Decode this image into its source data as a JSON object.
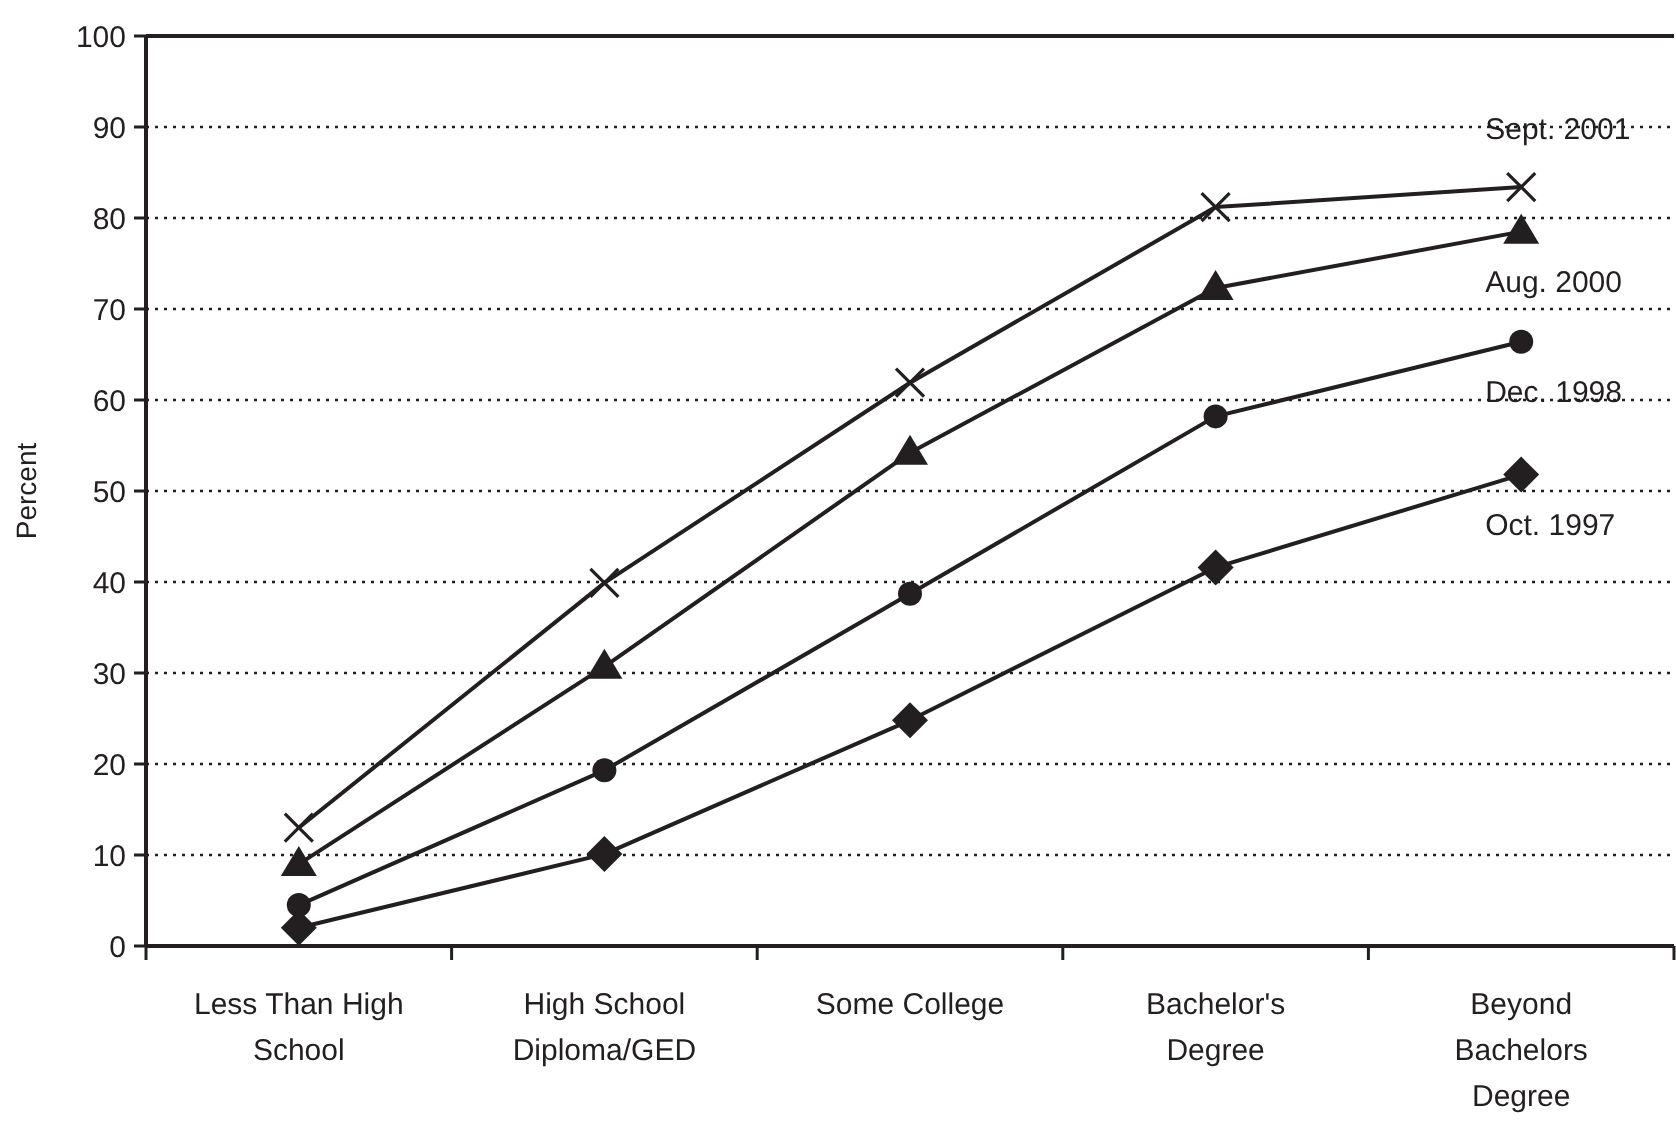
{
  "chart_data": {
    "type": "line",
    "ylabel": "Percent",
    "categories": [
      "Less Than High School",
      "High School Diploma/GED",
      "Some College",
      "Bachelor's Degree",
      "Beyond Bachelors Degree"
    ],
    "ylim": [
      0,
      100
    ],
    "yticks": [
      0,
      10,
      20,
      30,
      40,
      50,
      60,
      70,
      80,
      90,
      100
    ],
    "grid": "y",
    "legend": false,
    "line_style": "solid",
    "series": [
      {
        "name": "Sept. 2001",
        "color": "#231f20",
        "marker": "cross",
        "values": [
          13.0,
          39.9,
          61.9,
          81.2,
          83.4
        ]
      },
      {
        "name": "Aug. 2000",
        "color": "#231f20",
        "marker": "triangle",
        "values": [
          9.0,
          30.7,
          54.2,
          72.3,
          78.5
        ]
      },
      {
        "name": "Dec. 1998",
        "color": "#231f20",
        "marker": "circle",
        "values": [
          4.5,
          19.3,
          38.7,
          58.2,
          66.4
        ]
      },
      {
        "name": "Oct. 1997",
        "color": "#231f20",
        "marker": "diamond",
        "values": [
          2.0,
          10.1,
          24.8,
          41.6,
          51.8
        ]
      }
    ]
  }
}
